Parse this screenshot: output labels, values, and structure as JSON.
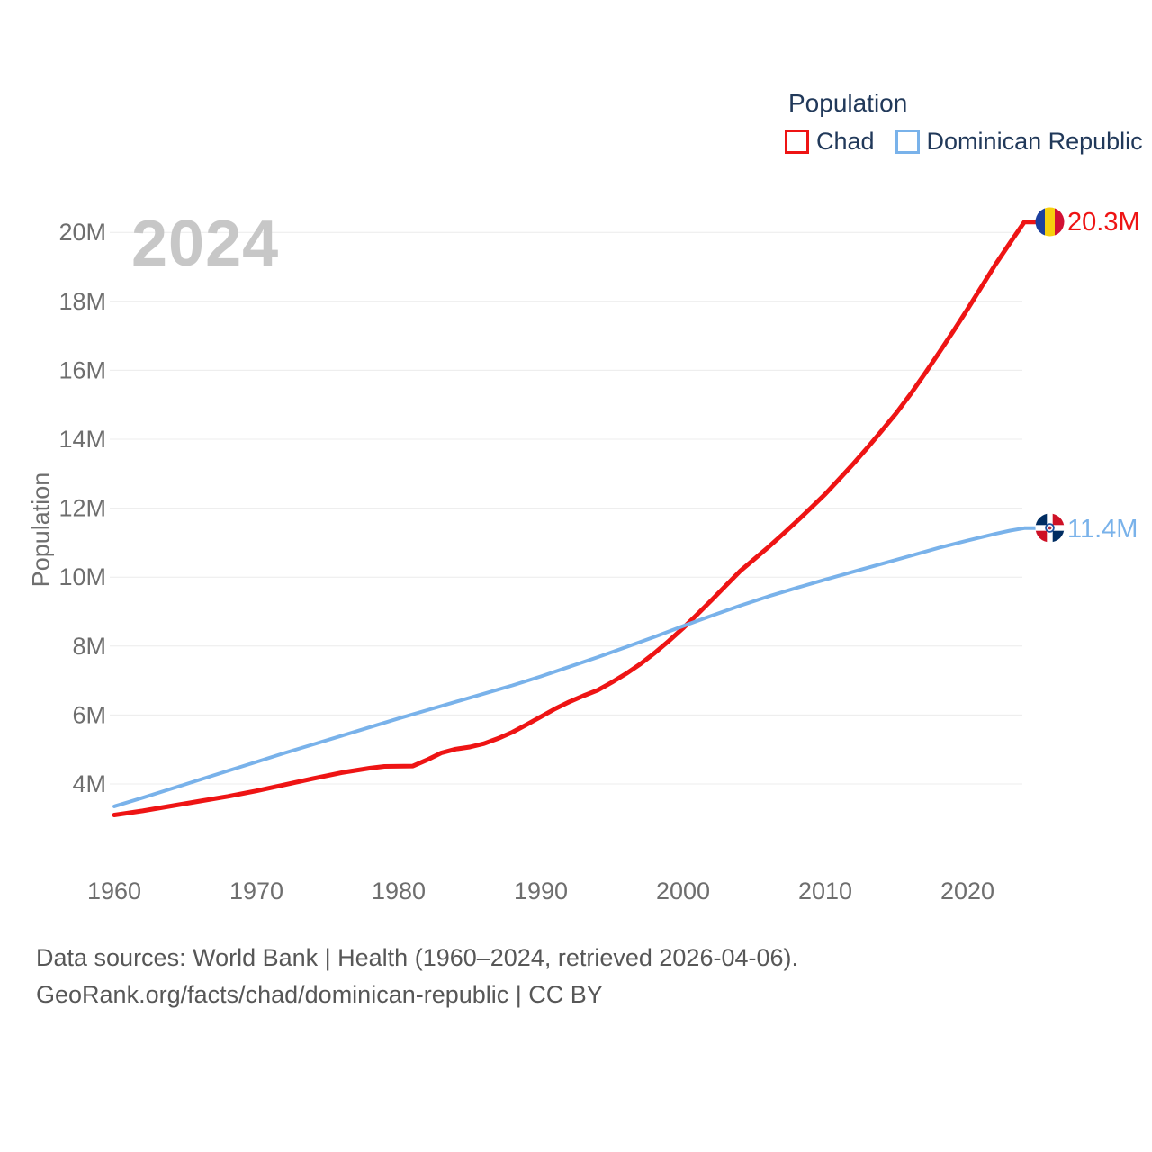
{
  "watermark": "2024",
  "y_axis_title": "Population",
  "legend": {
    "title": "Population",
    "items": [
      {
        "label": "Chad",
        "color": "#ee1414"
      },
      {
        "label": "Dominican Republic",
        "color": "#79b2ea"
      }
    ]
  },
  "end_labels": {
    "chad": "20.3M",
    "dominican_republic": "11.4M"
  },
  "footer": {
    "line1": "Data sources: World Bank | Health (1960–2024, retrieved 2026-04-06).",
    "line2": "GeoRank.org/facts/chad/dominican-republic | CC BY"
  },
  "icons": {
    "chad_flag": "chad-flag-icon",
    "dominican_republic_flag": "dominican-republic-flag-icon"
  },
  "chart_data": {
    "type": "line",
    "title": "Population",
    "xlabel": "",
    "ylabel": "Population",
    "x_range": [
      1960,
      2024
    ],
    "ylim": [
      3.0,
      20.5
    ],
    "grid": "horizontal",
    "legend_position": "top-right",
    "x_ticks": [
      "1960",
      "1970",
      "1980",
      "1990",
      "2000",
      "2010",
      "2020"
    ],
    "y_ticks": [
      {
        "value": 4,
        "label": "4M"
      },
      {
        "value": 6,
        "label": "6M"
      },
      {
        "value": 8,
        "label": "8M"
      },
      {
        "value": 10,
        "label": "10M"
      },
      {
        "value": 12,
        "label": "12M"
      },
      {
        "value": 14,
        "label": "14M"
      },
      {
        "value": 16,
        "label": "16M"
      },
      {
        "value": 18,
        "label": "18M"
      },
      {
        "value": 20,
        "label": "20M"
      }
    ],
    "series": [
      {
        "name": "Chad",
        "color": "#ee1414",
        "stroke_width": 5,
        "end_label": "20.3M",
        "points": [
          [
            1960,
            3.1
          ],
          [
            1962,
            3.22
          ],
          [
            1964,
            3.36
          ],
          [
            1966,
            3.5
          ],
          [
            1968,
            3.64
          ],
          [
            1970,
            3.8
          ],
          [
            1972,
            3.98
          ],
          [
            1974,
            4.16
          ],
          [
            1976,
            4.33
          ],
          [
            1978,
            4.46
          ],
          [
            1979,
            4.51
          ],
          [
            1981,
            4.52
          ],
          [
            1982,
            4.7
          ],
          [
            1983,
            4.9
          ],
          [
            1984,
            5.01
          ],
          [
            1985,
            5.07
          ],
          [
            1986,
            5.17
          ],
          [
            1987,
            5.32
          ],
          [
            1988,
            5.5
          ],
          [
            1989,
            5.72
          ],
          [
            1990,
            5.95
          ],
          [
            1991,
            6.18
          ],
          [
            1992,
            6.38
          ],
          [
            1993,
            6.56
          ],
          [
            1994,
            6.72
          ],
          [
            1995,
            6.95
          ],
          [
            1996,
            7.2
          ],
          [
            1997,
            7.48
          ],
          [
            1998,
            7.8
          ],
          [
            1999,
            8.15
          ],
          [
            2000,
            8.52
          ],
          [
            2001,
            8.92
          ],
          [
            2002,
            9.33
          ],
          [
            2003,
            9.75
          ],
          [
            2004,
            10.17
          ],
          [
            2005,
            10.52
          ],
          [
            2006,
            10.87
          ],
          [
            2007,
            11.24
          ],
          [
            2008,
            11.62
          ],
          [
            2009,
            12.01
          ],
          [
            2010,
            12.41
          ],
          [
            2011,
            12.85
          ],
          [
            2012,
            13.3
          ],
          [
            2013,
            13.77
          ],
          [
            2014,
            14.26
          ],
          [
            2015,
            14.76
          ],
          [
            2016,
            15.31
          ],
          [
            2017,
            15.9
          ],
          [
            2018,
            16.51
          ],
          [
            2019,
            17.13
          ],
          [
            2020,
            17.77
          ],
          [
            2021,
            18.43
          ],
          [
            2022,
            19.09
          ],
          [
            2023,
            19.7
          ],
          [
            2024,
            20.3
          ]
        ]
      },
      {
        "name": "Dominican Republic",
        "color": "#79b2ea",
        "stroke_width": 4,
        "end_label": "11.4M",
        "points": [
          [
            1960,
            3.35
          ],
          [
            1962,
            3.6
          ],
          [
            1964,
            3.86
          ],
          [
            1966,
            4.12
          ],
          [
            1968,
            4.38
          ],
          [
            1970,
            4.64
          ],
          [
            1972,
            4.9
          ],
          [
            1974,
            5.15
          ],
          [
            1976,
            5.4
          ],
          [
            1978,
            5.65
          ],
          [
            1980,
            5.9
          ],
          [
            1982,
            6.14
          ],
          [
            1984,
            6.38
          ],
          [
            1986,
            6.62
          ],
          [
            1988,
            6.86
          ],
          [
            1990,
            7.12
          ],
          [
            1992,
            7.4
          ],
          [
            1994,
            7.68
          ],
          [
            1996,
            7.97
          ],
          [
            1998,
            8.27
          ],
          [
            2000,
            8.58
          ],
          [
            2002,
            8.88
          ],
          [
            2004,
            9.17
          ],
          [
            2006,
            9.44
          ],
          [
            2008,
            9.69
          ],
          [
            2010,
            9.93
          ],
          [
            2012,
            10.16
          ],
          [
            2014,
            10.39
          ],
          [
            2016,
            10.62
          ],
          [
            2018,
            10.85
          ],
          [
            2020,
            11.06
          ],
          [
            2022,
            11.26
          ],
          [
            2023,
            11.35
          ],
          [
            2024,
            11.42
          ]
        ]
      }
    ]
  }
}
